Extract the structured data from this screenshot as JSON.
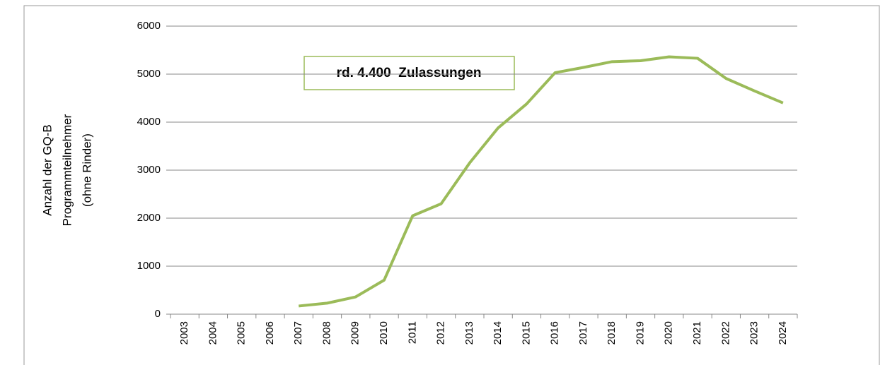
{
  "chart_data": {
    "type": "line",
    "y_label": [
      "Anzahl der GQ-B",
      "Programmteilnehmer",
      "(ohne Rinder)"
    ],
    "annotation": "rd. 4.400  Zulassungen",
    "categories": [
      "2003",
      "2004",
      "2005",
      "2006",
      "2007",
      "2008",
      "2009",
      "2010",
      "2011",
      "2012",
      "2013",
      "2014",
      "2015",
      "2016",
      "2017",
      "2018",
      "2019",
      "2020",
      "2021",
      "2022",
      "2023",
      "2024"
    ],
    "series": [
      {
        "color": "#9bbb59",
        "values": [
          null,
          null,
          null,
          null,
          170,
          230,
          360,
          710,
          2050,
          2300,
          3150,
          3880,
          4380,
          5030,
          5140,
          5260,
          5280,
          5360,
          5330,
          4910,
          4650,
          4400
        ]
      }
    ],
    "ylim": [
      0,
      6000
    ],
    "yticks": [
      0,
      1000,
      2000,
      3000,
      4000,
      5000,
      6000
    ],
    "grid": true
  }
}
